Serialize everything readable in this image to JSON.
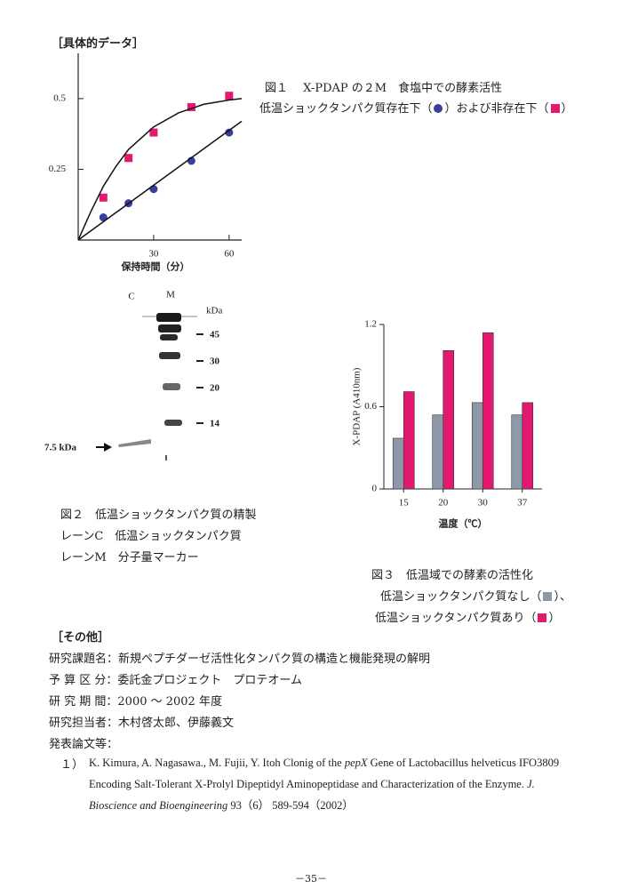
{
  "header": "［具体的データ］",
  "chart_data": [
    {
      "type": "scatter",
      "xlabel": "保持時間（分）",
      "xlim": [
        0,
        65
      ],
      "xticks": [
        30,
        60
      ],
      "ylim": [
        0,
        0.66
      ],
      "yticks": [
        0.25,
        0.5
      ],
      "series": [
        {
          "style": "points",
          "marker": "circle",
          "color": "#3b3f9c",
          "x": [
            10,
            20,
            30,
            45,
            60
          ],
          "values": [
            0.08,
            0.13,
            0.18,
            0.28,
            0.38
          ]
        },
        {
          "style": "points",
          "marker": "square",
          "color": "#e2196f",
          "x": [
            10,
            20,
            30,
            45,
            60
          ],
          "values": [
            0.15,
            0.29,
            0.38,
            0.47,
            0.51
          ]
        },
        {
          "style": "line",
          "color": "#111111",
          "x": [
            0,
            65
          ],
          "values": [
            0,
            0.42
          ]
        },
        {
          "style": "line",
          "color": "#111111",
          "x": [
            0,
            5,
            10,
            15,
            20,
            25,
            30,
            40,
            50,
            60,
            65
          ],
          "values": [
            0,
            0.1,
            0.19,
            0.26,
            0.32,
            0.36,
            0.4,
            0.45,
            0.48,
            0.495,
            0.5
          ]
        }
      ]
    },
    {
      "type": "bar",
      "ylabel": "X-PDAP (A410nm)",
      "xlabel": "温度（℃）",
      "categories": [
        "15",
        "20",
        "30",
        "37"
      ],
      "ylim": [
        0,
        1.2
      ],
      "yticks": [
        0,
        0.6,
        1.2
      ],
      "series": [
        {
          "color": "#8d99a8",
          "values": [
            0.37,
            0.54,
            0.63,
            0.54
          ]
        },
        {
          "color": "#e2196f",
          "values": [
            0.71,
            1.01,
            1.14,
            0.63
          ]
        }
      ]
    }
  ],
  "figure1_caption": [
    "図１　 X-PDAP の２M　食塩中での酵素活性",
    "低温ショックタンパク質存在下（",
    "）および非存在下（",
    "）"
  ],
  "figure2": {
    "lane_labels": [
      "C",
      "M"
    ],
    "unit": "kDa",
    "marker_labels": [
      "45",
      "30",
      "20",
      "14"
    ],
    "band_label": "7.5 kDa",
    "caption": [
      "図２　低温ショックタンパク質の精製",
      "レーンC　低温ショックタンパク質",
      "レーンM　分子量マーカー"
    ]
  },
  "figure3_caption": [
    "図３　低温域での酵素の活性化",
    "低温ショックタンパク質なし（",
    "）、",
    "低温ショックタンパク質あり（",
    "）"
  ],
  "other": {
    "heading": "［その他］",
    "rows": [
      "研究課題名：新規ペプチダーゼ活性化タンパク質の構造と機能発現の解明",
      "予 算 区 分：委託金プロジェクト　プロテオーム",
      "研 究 期 間：2000 ～ 2002 年度",
      "研究担当者：木村啓太郎、伊藤義文",
      "発表論文等："
    ],
    "reference": {
      "number": "１）",
      "parts": [
        "K. Kimura, A. Nagasawa., M. Fujii, Y. Itoh Clonig of the ",
        "pepX",
        " Gene of Lactobacillus helveticus IFO3809 Encoding Salt-Tolerant X-Prolyl Dipeptidyl Aminopeptidase and Characterization of the Enzyme. ",
        "J. Bioscience and Bioengineering",
        " 93（6） 589-594（2002）"
      ]
    }
  },
  "footer": "－35－"
}
